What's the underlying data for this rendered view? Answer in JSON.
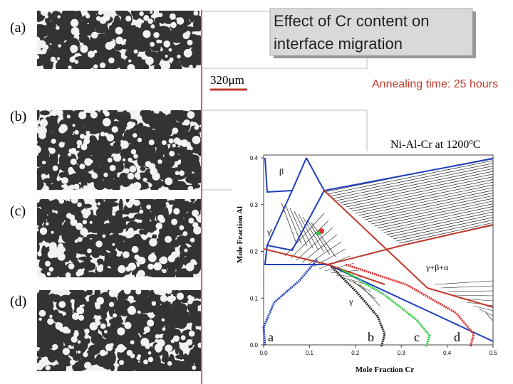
{
  "panel_labels": [
    "(a)",
    "(b)",
    "(c)",
    "(d)"
  ],
  "title_box": "Effect of Cr content on interface migration",
  "scale_bar": "320μm",
  "annealing": "Annealing time: 25 hours",
  "diagram": {
    "title": "Ni-Al-Cr at 1200",
    "title_sup": "o",
    "title_end": "C",
    "x_axis_label": "Mole Fraction Cr",
    "y_axis_label": "Mole Fraction Al",
    "xticks": [
      "0.0",
      "0.1",
      "0.2",
      "0.3",
      "0.4",
      "0.5"
    ],
    "yticks": [
      "0.0",
      "0.1",
      "0.2",
      "0.3",
      "0.4"
    ],
    "region_labels": [
      "β",
      "γ'",
      "γ+β+α",
      "γ"
    ],
    "path_labels": [
      "a",
      "b",
      "c",
      "d"
    ]
  }
}
